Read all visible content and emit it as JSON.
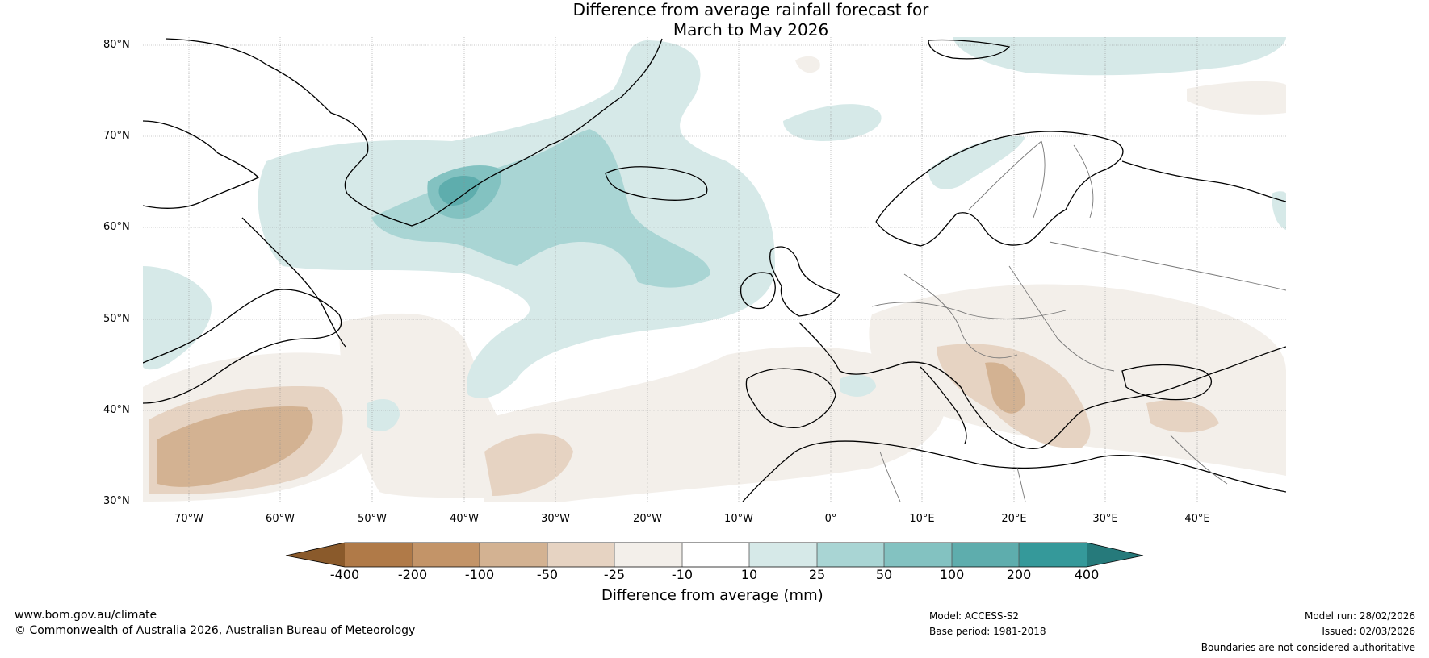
{
  "title": {
    "line1": "Difference from average rainfall forecast for",
    "line2": "March to May 2026"
  },
  "map": {
    "lat_labels": [
      "80°N",
      "70°N",
      "60°N",
      "50°N",
      "40°N",
      "30°N"
    ],
    "lon_labels": [
      "70°W",
      "60°W",
      "50°W",
      "40°W",
      "30°W",
      "20°W",
      "10°W",
      "0°",
      "10°E",
      "20°E",
      "30°E",
      "40°E"
    ]
  },
  "colorbar": {
    "ticks": [
      "-400",
      "-200",
      "-100",
      "-50",
      "-25",
      "-10",
      "10",
      "25",
      "50",
      "100",
      "200",
      "400"
    ],
    "label": "Difference from average (mm)",
    "colors": {
      "extend_low": "#8a5a2b",
      "c1": "#b07a48",
      "c2": "#c39468",
      "c3": "#d3b292",
      "c4": "#e6d3c2",
      "c5": "#f3efea",
      "c6": "#ffffff",
      "c7": "#d6e9e8",
      "c8": "#a9d5d4",
      "c9": "#83c2c1",
      "c10": "#5eadad",
      "c11": "#35999a",
      "extend_high": "#267a7b"
    }
  },
  "footer": {
    "website": "www.bom.gov.au/climate",
    "copyright": "© Commonwealth of Australia 2026, Australian Bureau of Meteorology",
    "model": "Model: ACCESS-S2",
    "base_period": "Base period: 1981-2018",
    "model_run": "Model run: 28/02/2026",
    "issued": "Issued: 02/03/2026",
    "boundaries": "Boundaries are not considered authoritative"
  }
}
